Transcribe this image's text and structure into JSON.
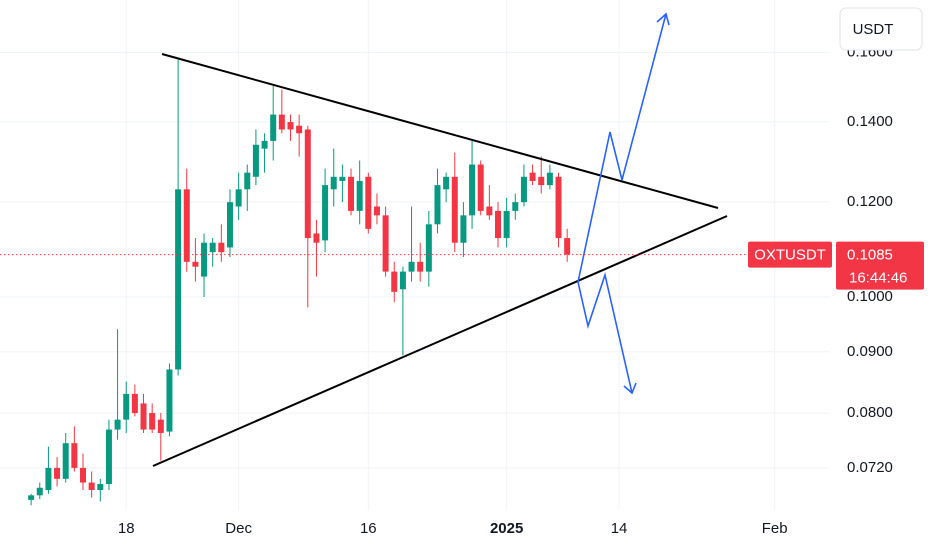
{
  "chart_data": {
    "type": "candlestick",
    "currency": "USDT",
    "symbol": "OXTUSDT",
    "last_price": {
      "value": 0.1085,
      "label": "0.1085"
    },
    "countdown": "16:44:46",
    "up_color": "#089981",
    "down_color": "#f23645",
    "log_scale": true,
    "grid": true,
    "x": [
      -11,
      -10,
      -9,
      -8,
      -7,
      -6,
      -5,
      -4,
      -3,
      -2,
      -1,
      0,
      1,
      2,
      3,
      4,
      5,
      6,
      7,
      8,
      9,
      10,
      11,
      12,
      13,
      14,
      15,
      16,
      17,
      18,
      19,
      20,
      21,
      22,
      23,
      24,
      25,
      26,
      27,
      28,
      29,
      30,
      31,
      32,
      33,
      34,
      35,
      36,
      37,
      38,
      39,
      40,
      41,
      42,
      43,
      44,
      45,
      46,
      47,
      48,
      49,
      50,
      51
    ],
    "open": [
      0.0677,
      0.0683,
      0.069,
      0.072,
      0.0705,
      0.0755,
      0.072,
      0.07,
      0.069,
      0.0698,
      0.0775,
      0.079,
      0.083,
      0.0815,
      0.08,
      0.079,
      0.0772,
      0.087,
      0.123,
      0.107,
      0.104,
      0.109,
      0.111,
      0.11,
      0.119,
      0.123,
      0.126,
      0.133,
      0.135,
      0.142,
      0.14,
      0.139,
      0.138,
      0.113,
      0.1115,
      0.123,
      0.125,
      0.126,
      0.118,
      0.126,
      0.119,
      0.117,
      0.105,
      0.1015,
      0.105,
      0.107,
      0.105,
      0.115,
      0.123,
      0.126,
      0.111,
      0.117,
      0.129,
      0.119,
      0.118,
      0.112,
      0.118,
      0.12,
      0.127,
      0.126,
      0.124,
      0.126,
      0.112
    ],
    "high": [
      0.0685,
      0.07,
      0.075,
      0.0735,
      0.077,
      0.078,
      0.074,
      0.0715,
      0.0705,
      0.079,
      0.094,
      0.085,
      0.0845,
      0.083,
      0.0815,
      0.08,
      0.088,
      0.1578,
      0.128,
      0.112,
      0.113,
      0.112,
      0.115,
      0.123,
      0.127,
      0.129,
      0.138,
      0.137,
      0.15,
      0.149,
      0.142,
      0.142,
      0.139,
      0.116,
      0.128,
      0.133,
      0.129,
      0.128,
      0.13,
      0.127,
      0.122,
      0.119,
      0.107,
      0.106,
      0.119,
      0.111,
      0.118,
      0.128,
      0.127,
      0.132,
      0.12,
      0.135,
      0.13,
      0.124,
      0.12,
      0.121,
      0.122,
      0.129,
      0.129,
      0.131,
      0.129,
      0.127,
      0.114
    ],
    "low": [
      0.067,
      0.0678,
      0.0685,
      0.0695,
      0.07,
      0.0715,
      0.069,
      0.068,
      0.0675,
      0.069,
      0.076,
      0.077,
      0.0795,
      0.077,
      0.077,
      0.073,
      0.0765,
      0.086,
      0.105,
      0.103,
      0.1,
      0.106,
      0.107,
      0.108,
      0.116,
      0.118,
      0.124,
      0.127,
      0.13,
      0.137,
      0.135,
      0.131,
      0.098,
      0.104,
      0.109,
      0.119,
      0.12,
      0.117,
      0.115,
      0.113,
      0.115,
      0.104,
      0.099,
      0.0894,
      0.103,
      0.103,
      0.102,
      0.113,
      0.12,
      0.109,
      0.108,
      0.114,
      0.117,
      0.116,
      0.11,
      0.11,
      0.116,
      0.119,
      0.124,
      0.122,
      0.123,
      0.11,
      0.107
    ],
    "close": [
      0.0683,
      0.0693,
      0.072,
      0.0705,
      0.0755,
      0.072,
      0.07,
      0.069,
      0.0698,
      0.0775,
      0.079,
      0.083,
      0.08,
      0.0775,
      0.0775,
      0.077,
      0.087,
      0.123,
      0.107,
      0.106,
      0.111,
      0.111,
      0.109,
      0.12,
      0.123,
      0.127,
      0.134,
      0.135,
      0.142,
      0.138,
      0.138,
      0.137,
      0.112,
      0.111,
      0.124,
      0.126,
      0.126,
      0.118,
      0.125,
      0.114,
      0.117,
      0.105,
      0.101,
      0.105,
      0.107,
      0.105,
      0.115,
      0.124,
      0.126,
      0.111,
      0.117,
      0.129,
      0.118,
      0.117,
      0.112,
      0.118,
      0.12,
      0.126,
      0.125,
      0.124,
      0.127,
      0.112,
      0.1085
    ],
    "xlim": [
      -14.6,
      81.4
    ],
    "xticks": [
      {
        "value": 0,
        "label": "18"
      },
      {
        "value": 13,
        "label": "Dec"
      },
      {
        "value": 28,
        "label": "16"
      },
      {
        "value": 44,
        "label": "2025"
      },
      {
        "value": 57,
        "label": "14"
      },
      {
        "value": 75,
        "label": "Feb"
      }
    ],
    "ylim": [
      0.0664,
      0.177
    ],
    "yticks": [
      {
        "value": 0.072,
        "label": "0.0720"
      },
      {
        "value": 0.08,
        "label": "0.0800"
      },
      {
        "value": 0.09,
        "label": "0.0900"
      },
      {
        "value": 0.1,
        "label": "0.1000"
      },
      {
        "value": 0.12,
        "label": "0.1200"
      },
      {
        "value": 0.14,
        "label": "0.1400"
      },
      {
        "value": 0.16,
        "label": "0.1600"
      }
    ]
  }
}
